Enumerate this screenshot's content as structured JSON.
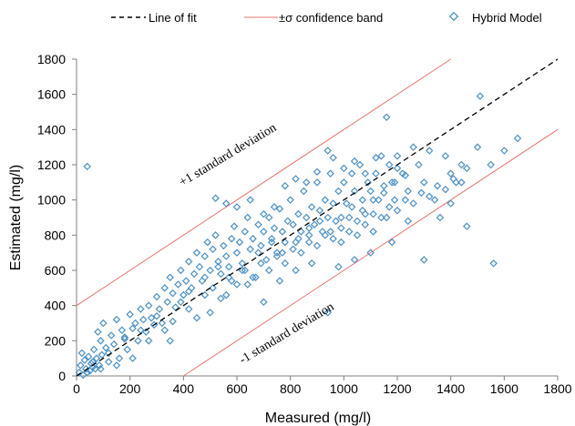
{
  "chart_data": {
    "type": "scatter",
    "xlabel": "Measured (mg/l)",
    "ylabel": "Estimated (mg/l)",
    "xlim": [
      0,
      1800
    ],
    "ylim": [
      0,
      1800
    ],
    "x_ticks": [
      "0",
      "200",
      "400",
      "600",
      "800",
      "1000",
      "1200",
      "1400",
      "1600",
      "1800"
    ],
    "y_ticks": [
      "0",
      "200",
      "400",
      "600",
      "800",
      "1000",
      "1200",
      "1400",
      "1600",
      "1800"
    ],
    "grid": false,
    "legend_position": "top",
    "legend": {
      "fit_label": "Line of fit",
      "band_label": "±σ confidence band",
      "scatter_label": "Hybrid Model"
    },
    "colors": {
      "scatter": "#4a90c8",
      "band": "#e8736b",
      "fit": "#000000"
    },
    "line_of_fit": {
      "x": [
        0,
        1800
      ],
      "y": [
        0,
        1800
      ]
    },
    "upper_band": {
      "x": [
        0,
        1400
      ],
      "y": [
        400,
        1800
      ],
      "label": "+1 standard deviation"
    },
    "lower_band": {
      "x": [
        400,
        1800
      ],
      "y": [
        0,
        1400
      ],
      "label": "-1 standard deviation"
    },
    "series": [
      {
        "name": "Hybrid Model",
        "points": [
          [
            10,
            20
          ],
          [
            15,
            60
          ],
          [
            20,
            130
          ],
          [
            25,
            5
          ],
          [
            30,
            90
          ],
          [
            35,
            40
          ],
          [
            40,
            20
          ],
          [
            45,
            110
          ],
          [
            50,
            30
          ],
          [
            55,
            70
          ],
          [
            60,
            50
          ],
          [
            65,
            150
          ],
          [
            70,
            40
          ],
          [
            75,
            100
          ],
          [
            80,
            250
          ],
          [
            85,
            60
          ],
          [
            90,
            200
          ],
          [
            95,
            120
          ],
          [
            100,
            300
          ],
          [
            110,
            160
          ],
          [
            120,
            80
          ],
          [
            130,
            230
          ],
          [
            140,
            180
          ],
          [
            150,
            320
          ],
          [
            160,
            100
          ],
          [
            170,
            260
          ],
          [
            180,
            210
          ],
          [
            190,
            150
          ],
          [
            200,
            350
          ],
          [
            210,
            270
          ],
          [
            220,
            300
          ],
          [
            230,
            200
          ],
          [
            240,
            380
          ],
          [
            250,
            320
          ],
          [
            260,
            250
          ],
          [
            270,
            400
          ],
          [
            280,
            330
          ],
          [
            290,
            290
          ],
          [
            300,
            450
          ],
          [
            310,
            380
          ],
          [
            320,
            300
          ],
          [
            330,
            500
          ],
          [
            340,
            420
          ],
          [
            350,
            560
          ],
          [
            360,
            470
          ],
          [
            370,
            390
          ],
          [
            380,
            520
          ],
          [
            390,
            600
          ],
          [
            400,
            460
          ],
          [
            410,
            540
          ],
          [
            420,
            650
          ],
          [
            430,
            500
          ],
          [
            440,
            580
          ],
          [
            450,
            700
          ],
          [
            460,
            620
          ],
          [
            470,
            540
          ],
          [
            480,
            680
          ],
          [
            490,
            760
          ],
          [
            500,
            600
          ],
          [
            510,
            720
          ],
          [
            520,
            800
          ],
          [
            530,
            650
          ],
          [
            540,
            580
          ],
          [
            550,
            740
          ],
          [
            560,
            680
          ],
          [
            570,
            620
          ],
          [
            580,
            780
          ],
          [
            590,
            850
          ],
          [
            600,
            700
          ],
          [
            610,
            760
          ],
          [
            620,
            640
          ],
          [
            630,
            820
          ],
          [
            640,
            900
          ],
          [
            650,
            720
          ],
          [
            660,
            780
          ],
          [
            670,
            560
          ],
          [
            680,
            860
          ],
          [
            690,
            740
          ],
          [
            700,
            820
          ],
          [
            710,
            660
          ],
          [
            720,
            900
          ],
          [
            730,
            780
          ],
          [
            740,
            840
          ],
          [
            750,
            700
          ],
          [
            760,
            950
          ],
          [
            770,
            820
          ],
          [
            780,
            760
          ],
          [
            790,
            880
          ],
          [
            800,
            1000
          ],
          [
            810,
            860
          ],
          [
            820,
            760
          ],
          [
            830,
            920
          ],
          [
            840,
            820
          ],
          [
            850,
            1050
          ],
          [
            860,
            900
          ],
          [
            870,
            800
          ],
          [
            880,
            960
          ],
          [
            890,
            860
          ],
          [
            900,
            1100
          ],
          [
            910,
            940
          ],
          [
            920,
            820
          ],
          [
            930,
            1000
          ],
          [
            940,
            900
          ],
          [
            950,
            1150
          ],
          [
            960,
            980
          ],
          [
            970,
            880
          ],
          [
            980,
            1050
          ],
          [
            990,
            760
          ],
          [
            1000,
            1100
          ],
          [
            1010,
            980
          ],
          [
            1020,
            900
          ],
          [
            1030,
            1150
          ],
          [
            1040,
            1050
          ],
          [
            1050,
            800
          ],
          [
            1060,
            1200
          ],
          [
            1070,
            1000
          ],
          [
            1080,
            920
          ],
          [
            1090,
            1100
          ],
          [
            1100,
            1050
          ],
          [
            1110,
            820
          ],
          [
            1120,
            1150
          ],
          [
            1130,
            1000
          ],
          [
            1140,
            1250
          ],
          [
            1150,
            1080
          ],
          [
            1160,
            900
          ],
          [
            1170,
            1200
          ],
          [
            1180,
            1100
          ],
          [
            1190,
            1000
          ],
          [
            1200,
            1250
          ],
          [
            1220,
            1150
          ],
          [
            1240,
            1050
          ],
          [
            1260,
            1300
          ],
          [
            1280,
            1200
          ],
          [
            1300,
            1100
          ],
          [
            1320,
            1280
          ],
          [
            1340,
            1000
          ],
          [
            1360,
            900
          ],
          [
            1380,
            1250
          ],
          [
            1400,
            1150
          ],
          [
            1420,
            1100
          ],
          [
            1440,
            1200
          ],
          [
            1460,
            850
          ],
          [
            1500,
            1300
          ],
          [
            1550,
            1200
          ],
          [
            1600,
            1280
          ],
          [
            1650,
            1350
          ],
          [
            40,
            1190
          ],
          [
            350,
            200
          ],
          [
            420,
            480
          ],
          [
            500,
            360
          ],
          [
            560,
            460
          ],
          [
            640,
            520
          ],
          [
            700,
            420
          ],
          [
            760,
            540
          ],
          [
            820,
            600
          ],
          [
            880,
            640
          ],
          [
            940,
            360
          ],
          [
            980,
            620
          ],
          [
            1040,
            660
          ],
          [
            1100,
            700
          ],
          [
            1180,
            760
          ],
          [
            1240,
            880
          ],
          [
            1300,
            660
          ],
          [
            1400,
            980
          ],
          [
            1460,
            1180
          ],
          [
            1560,
            640
          ],
          [
            1510,
            1590
          ],
          [
            1160,
            1470
          ],
          [
            60,
            80
          ],
          [
            90,
            40
          ],
          [
            120,
            130
          ],
          [
            150,
            60
          ],
          [
            180,
            220
          ],
          [
            210,
            100
          ],
          [
            240,
            260
          ],
          [
            270,
            200
          ],
          [
            300,
            340
          ],
          [
            330,
            260
          ],
          [
            360,
            310
          ],
          [
            390,
            420
          ],
          [
            420,
            380
          ],
          [
            450,
            330
          ],
          [
            480,
            460
          ],
          [
            510,
            500
          ],
          [
            540,
            440
          ],
          [
            570,
            560
          ],
          [
            600,
            520
          ],
          [
            630,
            600
          ],
          [
            660,
            560
          ],
          [
            690,
            640
          ],
          [
            720,
            600
          ],
          [
            750,
            680
          ],
          [
            780,
            640
          ],
          [
            810,
            720
          ],
          [
            840,
            700
          ],
          [
            870,
            760
          ],
          [
            900,
            740
          ],
          [
            930,
            800
          ],
          [
            960,
            780
          ],
          [
            990,
            840
          ],
          [
            1020,
            820
          ],
          [
            1050,
            880
          ],
          [
            1080,
            860
          ],
          [
            1110,
            920
          ],
          [
            1140,
            900
          ],
          [
            1170,
            960
          ],
          [
            1200,
            940
          ],
          [
            1230,
            1000
          ],
          [
            1260,
            980
          ],
          [
            1290,
            1040
          ],
          [
            1320,
            1020
          ],
          [
            1350,
            1080
          ],
          [
            1380,
            1060
          ],
          [
            1410,
            1120
          ],
          [
            1440,
            1100
          ],
          [
            520,
            1010
          ],
          [
            560,
            980
          ],
          [
            600,
            960
          ],
          [
            650,
            1000
          ],
          [
            700,
            920
          ],
          [
            740,
            960
          ],
          [
            780,
            1080
          ],
          [
            820,
            1120
          ],
          [
            860,
            1100
          ],
          [
            900,
            1160
          ],
          [
            940,
            1280
          ],
          [
            960,
            1240
          ],
          [
            1000,
            1180
          ],
          [
            1040,
            1220
          ],
          [
            1080,
            1150
          ],
          [
            1120,
            1240
          ],
          [
            1200,
            1180
          ],
          [
            480,
            560
          ],
          [
            530,
            620
          ],
          [
            580,
            540
          ],
          [
            620,
            600
          ],
          [
            680,
            700
          ],
          [
            730,
            760
          ],
          [
            770,
            700
          ],
          [
            830,
            780
          ],
          [
            870,
            840
          ],
          [
            910,
            880
          ],
          [
            950,
            820
          ],
          [
            990,
            900
          ],
          [
            1030,
            960
          ],
          [
            1070,
            940
          ],
          [
            1110,
            1000
          ],
          [
            1150,
            1040
          ],
          [
            1190,
            1100
          ],
          [
            1230,
            1140
          ]
        ]
      }
    ]
  }
}
